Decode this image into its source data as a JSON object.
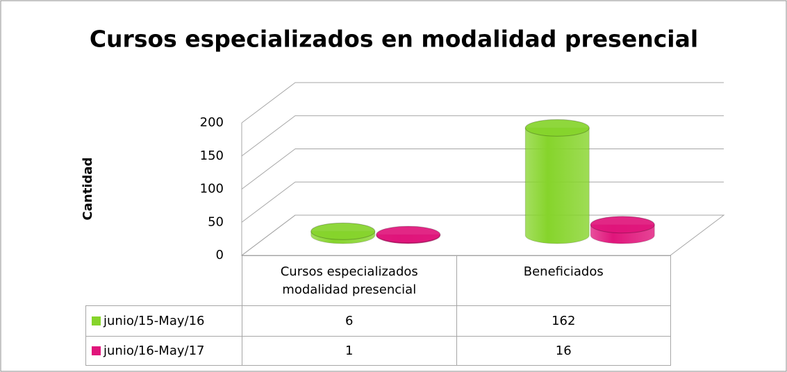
{
  "chart_data": {
    "type": "bar3d",
    "title": "Cursos especializados en modalidad presencial",
    "y_label": "Cantidad",
    "categories": [
      "Cursos especializados modalidad presencial",
      "Beneficiados"
    ],
    "series": [
      {
        "name": "junio/15-May/16",
        "color": "#86d42b",
        "values": [
          6,
          162
        ]
      },
      {
        "name": "junio/16-May/17",
        "color": "#e0157b",
        "values": [
          1,
          16
        ]
      }
    ],
    "ylim": [
      0,
      200
    ],
    "yticks": [
      0,
      50,
      100,
      150,
      200
    ],
    "grid": true,
    "data_table": true
  }
}
